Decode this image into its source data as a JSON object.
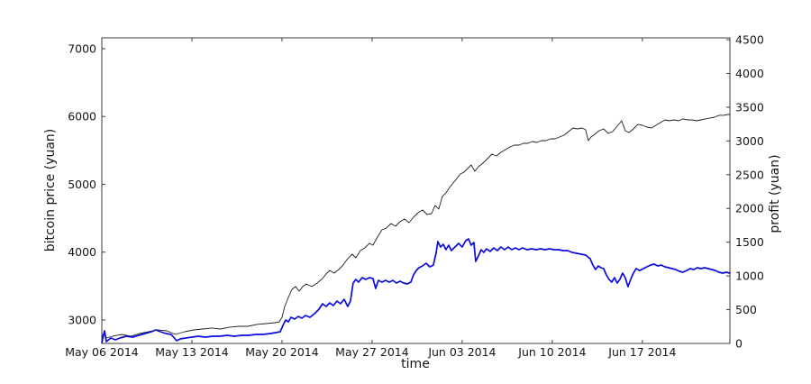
{
  "figure": {
    "background": "#ffffff"
  },
  "chart_data": {
    "type": "line",
    "title": "",
    "xlabel": "time",
    "ylabel_left": "bitcoin price (yuan)",
    "ylabel_right": "profit (yuan)",
    "grid": false,
    "legend": "none",
    "x_unit": "days since May 06 2014",
    "x_domain": [
      0,
      48.8
    ],
    "x_ticks": [
      {
        "day": 0,
        "label": "May 06 2014"
      },
      {
        "day": 7,
        "label": "May 13 2014"
      },
      {
        "day": 14,
        "label": "May 20 2014"
      },
      {
        "day": 21,
        "label": "May 27 2014"
      },
      {
        "day": 28,
        "label": "Jun 03 2014"
      },
      {
        "day": 35,
        "label": "Jun 10 2014"
      },
      {
        "day": 42,
        "label": "Jun 17 2014"
      }
    ],
    "y_left": {
      "domain": [
        2654,
        7159
      ],
      "ticks": [
        3000,
        4000,
        5000,
        6000,
        7000
      ]
    },
    "y_right": {
      "domain": [
        0,
        4527
      ],
      "ticks": [
        0,
        500,
        1000,
        1500,
        2000,
        2500,
        3000,
        3500,
        4000,
        4500
      ]
    },
    "axis_color": "#3a3a3a",
    "series": [
      {
        "name": "bitcoin price",
        "axis": "left",
        "color": "#1c1c1c",
        "width": 0.9,
        "points": [
          [
            0,
            2748
          ],
          [
            0.21,
            2827
          ],
          [
            0.35,
            2734
          ],
          [
            0.84,
            2760
          ],
          [
            1.54,
            2787
          ],
          [
            2.24,
            2760
          ],
          [
            2.94,
            2801
          ],
          [
            3.64,
            2827
          ],
          [
            4.34,
            2854
          ],
          [
            5.04,
            2840
          ],
          [
            5.74,
            2787
          ],
          [
            6.44,
            2827
          ],
          [
            7.14,
            2854
          ],
          [
            7.84,
            2867
          ],
          [
            8.54,
            2881
          ],
          [
            9.24,
            2867
          ],
          [
            9.94,
            2894
          ],
          [
            10.64,
            2907
          ],
          [
            11.34,
            2907
          ],
          [
            12.04,
            2934
          ],
          [
            12.74,
            2947
          ],
          [
            13.44,
            2960
          ],
          [
            13.79,
            2973
          ],
          [
            14.0,
            3040
          ],
          [
            14.21,
            3199
          ],
          [
            14.49,
            3332
          ],
          [
            14.77,
            3452
          ],
          [
            15.05,
            3492
          ],
          [
            15.33,
            3425
          ],
          [
            15.61,
            3492
          ],
          [
            15.89,
            3531
          ],
          [
            16.31,
            3492
          ],
          [
            16.73,
            3545
          ],
          [
            17.15,
            3611
          ],
          [
            17.43,
            3678
          ],
          [
            17.71,
            3731
          ],
          [
            18.06,
            3691
          ],
          [
            18.41,
            3744
          ],
          [
            18.76,
            3811
          ],
          [
            19.11,
            3904
          ],
          [
            19.46,
            3970
          ],
          [
            19.74,
            3917
          ],
          [
            20.09,
            4023
          ],
          [
            20.44,
            4063
          ],
          [
            20.79,
            4130
          ],
          [
            21.07,
            4103
          ],
          [
            21.42,
            4223
          ],
          [
            21.77,
            4329
          ],
          [
            22.12,
            4356
          ],
          [
            22.47,
            4422
          ],
          [
            22.82,
            4382
          ],
          [
            23.17,
            4449
          ],
          [
            23.52,
            4488
          ],
          [
            23.87,
            4435
          ],
          [
            24.22,
            4515
          ],
          [
            24.57,
            4581
          ],
          [
            24.92,
            4621
          ],
          [
            25.27,
            4555
          ],
          [
            25.62,
            4568
          ],
          [
            25.9,
            4688
          ],
          [
            26.18,
            4635
          ],
          [
            26.46,
            4821
          ],
          [
            26.74,
            4874
          ],
          [
            27.02,
            4953
          ],
          [
            27.3,
            5020
          ],
          [
            27.58,
            5086
          ],
          [
            27.86,
            5152
          ],
          [
            28.14,
            5179
          ],
          [
            28.42,
            5232
          ],
          [
            28.7,
            5285
          ],
          [
            28.98,
            5192
          ],
          [
            29.26,
            5259
          ],
          [
            29.61,
            5312
          ],
          [
            29.96,
            5378
          ],
          [
            30.31,
            5445
          ],
          [
            30.66,
            5418
          ],
          [
            31.01,
            5471
          ],
          [
            31.36,
            5511
          ],
          [
            31.71,
            5551
          ],
          [
            32.06,
            5578
          ],
          [
            32.41,
            5578
          ],
          [
            32.76,
            5604
          ],
          [
            33.11,
            5604
          ],
          [
            33.46,
            5631
          ],
          [
            33.81,
            5618
          ],
          [
            34.16,
            5644
          ],
          [
            34.51,
            5644
          ],
          [
            34.86,
            5671
          ],
          [
            35.21,
            5671
          ],
          [
            35.56,
            5697
          ],
          [
            35.91,
            5724
          ],
          [
            36.26,
            5777
          ],
          [
            36.61,
            5830
          ],
          [
            36.96,
            5817
          ],
          [
            37.31,
            5830
          ],
          [
            37.59,
            5804
          ],
          [
            37.8,
            5644
          ],
          [
            38.01,
            5697
          ],
          [
            38.29,
            5737
          ],
          [
            38.64,
            5790
          ],
          [
            38.99,
            5817
          ],
          [
            39.34,
            5750
          ],
          [
            39.69,
            5777
          ],
          [
            40.04,
            5857
          ],
          [
            40.39,
            5937
          ],
          [
            40.67,
            5790
          ],
          [
            40.95,
            5764
          ],
          [
            41.3,
            5817
          ],
          [
            41.65,
            5884
          ],
          [
            42.0,
            5870
          ],
          [
            42.35,
            5844
          ],
          [
            42.7,
            5830
          ],
          [
            43.05,
            5870
          ],
          [
            43.4,
            5910
          ],
          [
            43.75,
            5950
          ],
          [
            44.1,
            5937
          ],
          [
            44.45,
            5950
          ],
          [
            44.8,
            5937
          ],
          [
            45.15,
            5964
          ],
          [
            45.5,
            5950
          ],
          [
            45.85,
            5950
          ],
          [
            46.2,
            5937
          ],
          [
            46.55,
            5950
          ],
          [
            46.9,
            5964
          ],
          [
            47.25,
            5977
          ],
          [
            47.6,
            5990
          ],
          [
            47.95,
            6017
          ],
          [
            48.3,
            6017
          ],
          [
            48.65,
            6030
          ],
          [
            48.8,
            6030
          ]
        ]
      },
      {
        "name": "profit",
        "axis": "right",
        "color": "#0b0bdb",
        "width": 1.7,
        "points": [
          [
            0,
            13
          ],
          [
            0.21,
            187
          ],
          [
            0.35,
            27
          ],
          [
            0.7,
            80
          ],
          [
            1.05,
            53
          ],
          [
            1.4,
            80
          ],
          [
            1.89,
            107
          ],
          [
            2.38,
            93
          ],
          [
            2.87,
            120
          ],
          [
            3.36,
            147
          ],
          [
            3.85,
            174
          ],
          [
            4.2,
            200
          ],
          [
            4.55,
            174
          ],
          [
            4.97,
            147
          ],
          [
            5.39,
            134
          ],
          [
            5.81,
            40
          ],
          [
            6.09,
            67
          ],
          [
            6.51,
            80
          ],
          [
            7.0,
            93
          ],
          [
            7.49,
            107
          ],
          [
            8.05,
            93
          ],
          [
            8.61,
            107
          ],
          [
            9.17,
            107
          ],
          [
            9.73,
            120
          ],
          [
            10.29,
            107
          ],
          [
            10.85,
            120
          ],
          [
            11.41,
            120
          ],
          [
            11.97,
            134
          ],
          [
            12.53,
            134
          ],
          [
            13.09,
            147
          ],
          [
            13.51,
            160
          ],
          [
            13.86,
            174
          ],
          [
            14.07,
            267
          ],
          [
            14.28,
            347
          ],
          [
            14.49,
            320
          ],
          [
            14.7,
            387
          ],
          [
            14.98,
            360
          ],
          [
            15.26,
            401
          ],
          [
            15.54,
            374
          ],
          [
            15.82,
            414
          ],
          [
            16.17,
            387
          ],
          [
            16.52,
            441
          ],
          [
            16.87,
            507
          ],
          [
            17.15,
            588
          ],
          [
            17.43,
            547
          ],
          [
            17.71,
            601
          ],
          [
            17.99,
            561
          ],
          [
            18.27,
            628
          ],
          [
            18.55,
            588
          ],
          [
            18.83,
            654
          ],
          [
            19.11,
            547
          ],
          [
            19.32,
            628
          ],
          [
            19.53,
            895
          ],
          [
            19.74,
            948
          ],
          [
            19.95,
            908
          ],
          [
            20.23,
            975
          ],
          [
            20.51,
            948
          ],
          [
            20.79,
            975
          ],
          [
            21.07,
            961
          ],
          [
            21.28,
            814
          ],
          [
            21.49,
            935
          ],
          [
            21.77,
            908
          ],
          [
            22.05,
            935
          ],
          [
            22.33,
            908
          ],
          [
            22.61,
            935
          ],
          [
            22.89,
            895
          ],
          [
            23.17,
            921
          ],
          [
            23.45,
            895
          ],
          [
            23.73,
            881
          ],
          [
            24.01,
            908
          ],
          [
            24.22,
            1015
          ],
          [
            24.43,
            1081
          ],
          [
            24.64,
            1122
          ],
          [
            24.92,
            1148
          ],
          [
            25.2,
            1188
          ],
          [
            25.48,
            1135
          ],
          [
            25.76,
            1161
          ],
          [
            25.97,
            1335
          ],
          [
            26.11,
            1509
          ],
          [
            26.32,
            1429
          ],
          [
            26.53,
            1469
          ],
          [
            26.74,
            1389
          ],
          [
            26.95,
            1455
          ],
          [
            27.16,
            1375
          ],
          [
            27.44,
            1429
          ],
          [
            27.72,
            1482
          ],
          [
            28.0,
            1429
          ],
          [
            28.28,
            1522
          ],
          [
            28.49,
            1549
          ],
          [
            28.7,
            1455
          ],
          [
            28.91,
            1495
          ],
          [
            29.05,
            1215
          ],
          [
            29.26,
            1295
          ],
          [
            29.47,
            1389
          ],
          [
            29.68,
            1349
          ],
          [
            29.89,
            1402
          ],
          [
            30.17,
            1362
          ],
          [
            30.45,
            1415
          ],
          [
            30.73,
            1375
          ],
          [
            31.01,
            1429
          ],
          [
            31.29,
            1389
          ],
          [
            31.57,
            1429
          ],
          [
            31.85,
            1389
          ],
          [
            32.13,
            1415
          ],
          [
            32.41,
            1389
          ],
          [
            32.69,
            1415
          ],
          [
            33.04,
            1389
          ],
          [
            33.39,
            1402
          ],
          [
            33.74,
            1389
          ],
          [
            34.09,
            1402
          ],
          [
            34.44,
            1389
          ],
          [
            34.79,
            1402
          ],
          [
            35.14,
            1389
          ],
          [
            35.49,
            1389
          ],
          [
            35.84,
            1375
          ],
          [
            36.19,
            1375
          ],
          [
            36.54,
            1349
          ],
          [
            36.89,
            1335
          ],
          [
            37.24,
            1322
          ],
          [
            37.59,
            1309
          ],
          [
            37.94,
            1255
          ],
          [
            38.15,
            1161
          ],
          [
            38.36,
            1095
          ],
          [
            38.57,
            1148
          ],
          [
            38.78,
            1122
          ],
          [
            38.99,
            1108
          ],
          [
            39.2,
            1015
          ],
          [
            39.41,
            948
          ],
          [
            39.62,
            908
          ],
          [
            39.83,
            975
          ],
          [
            40.04,
            895
          ],
          [
            40.25,
            948
          ],
          [
            40.46,
            1041
          ],
          [
            40.67,
            975
          ],
          [
            40.88,
            841
          ],
          [
            41.09,
            948
          ],
          [
            41.3,
            1041
          ],
          [
            41.51,
            1108
          ],
          [
            41.79,
            1081
          ],
          [
            42.07,
            1108
          ],
          [
            42.35,
            1135
          ],
          [
            42.63,
            1161
          ],
          [
            42.91,
            1175
          ],
          [
            43.19,
            1148
          ],
          [
            43.47,
            1161
          ],
          [
            43.75,
            1135
          ],
          [
            44.03,
            1122
          ],
          [
            44.31,
            1108
          ],
          [
            44.59,
            1095
          ],
          [
            44.87,
            1068
          ],
          [
            45.15,
            1055
          ],
          [
            45.43,
            1081
          ],
          [
            45.71,
            1108
          ],
          [
            45.99,
            1095
          ],
          [
            46.27,
            1122
          ],
          [
            46.55,
            1108
          ],
          [
            46.83,
            1122
          ],
          [
            47.11,
            1108
          ],
          [
            47.39,
            1095
          ],
          [
            47.67,
            1081
          ],
          [
            47.95,
            1055
          ],
          [
            48.23,
            1041
          ],
          [
            48.51,
            1055
          ],
          [
            48.8,
            1041
          ]
        ]
      }
    ]
  }
}
